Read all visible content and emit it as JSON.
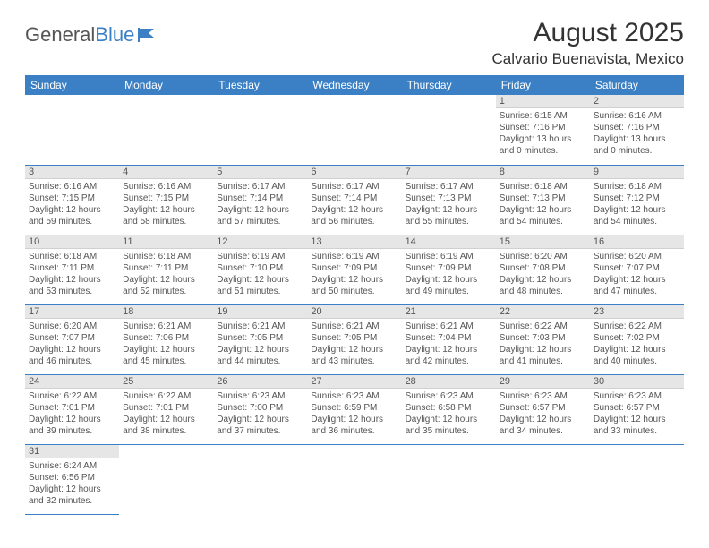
{
  "logo": {
    "text1": "General",
    "text2": "Blue"
  },
  "header": {
    "month_title": "August 2025",
    "location": "Calvario Buenavista, Mexico"
  },
  "colors": {
    "header_bg": "#3b7fc4",
    "row_border": "#3b7fc4",
    "daynum_bg": "#e6e6e6",
    "text": "#555555"
  },
  "calendar": {
    "day_headers": [
      "Sunday",
      "Monday",
      "Tuesday",
      "Wednesday",
      "Thursday",
      "Friday",
      "Saturday"
    ],
    "weeks": [
      [
        null,
        null,
        null,
        null,
        null,
        {
          "n": "1",
          "sr": "Sunrise: 6:15 AM",
          "ss": "Sunset: 7:16 PM",
          "dl": "Daylight: 13 hours and 0 minutes."
        },
        {
          "n": "2",
          "sr": "Sunrise: 6:16 AM",
          "ss": "Sunset: 7:16 PM",
          "dl": "Daylight: 13 hours and 0 minutes."
        }
      ],
      [
        {
          "n": "3",
          "sr": "Sunrise: 6:16 AM",
          "ss": "Sunset: 7:15 PM",
          "dl": "Daylight: 12 hours and 59 minutes."
        },
        {
          "n": "4",
          "sr": "Sunrise: 6:16 AM",
          "ss": "Sunset: 7:15 PM",
          "dl": "Daylight: 12 hours and 58 minutes."
        },
        {
          "n": "5",
          "sr": "Sunrise: 6:17 AM",
          "ss": "Sunset: 7:14 PM",
          "dl": "Daylight: 12 hours and 57 minutes."
        },
        {
          "n": "6",
          "sr": "Sunrise: 6:17 AM",
          "ss": "Sunset: 7:14 PM",
          "dl": "Daylight: 12 hours and 56 minutes."
        },
        {
          "n": "7",
          "sr": "Sunrise: 6:17 AM",
          "ss": "Sunset: 7:13 PM",
          "dl": "Daylight: 12 hours and 55 minutes."
        },
        {
          "n": "8",
          "sr": "Sunrise: 6:18 AM",
          "ss": "Sunset: 7:13 PM",
          "dl": "Daylight: 12 hours and 54 minutes."
        },
        {
          "n": "9",
          "sr": "Sunrise: 6:18 AM",
          "ss": "Sunset: 7:12 PM",
          "dl": "Daylight: 12 hours and 54 minutes."
        }
      ],
      [
        {
          "n": "10",
          "sr": "Sunrise: 6:18 AM",
          "ss": "Sunset: 7:11 PM",
          "dl": "Daylight: 12 hours and 53 minutes."
        },
        {
          "n": "11",
          "sr": "Sunrise: 6:18 AM",
          "ss": "Sunset: 7:11 PM",
          "dl": "Daylight: 12 hours and 52 minutes."
        },
        {
          "n": "12",
          "sr": "Sunrise: 6:19 AM",
          "ss": "Sunset: 7:10 PM",
          "dl": "Daylight: 12 hours and 51 minutes."
        },
        {
          "n": "13",
          "sr": "Sunrise: 6:19 AM",
          "ss": "Sunset: 7:09 PM",
          "dl": "Daylight: 12 hours and 50 minutes."
        },
        {
          "n": "14",
          "sr": "Sunrise: 6:19 AM",
          "ss": "Sunset: 7:09 PM",
          "dl": "Daylight: 12 hours and 49 minutes."
        },
        {
          "n": "15",
          "sr": "Sunrise: 6:20 AM",
          "ss": "Sunset: 7:08 PM",
          "dl": "Daylight: 12 hours and 48 minutes."
        },
        {
          "n": "16",
          "sr": "Sunrise: 6:20 AM",
          "ss": "Sunset: 7:07 PM",
          "dl": "Daylight: 12 hours and 47 minutes."
        }
      ],
      [
        {
          "n": "17",
          "sr": "Sunrise: 6:20 AM",
          "ss": "Sunset: 7:07 PM",
          "dl": "Daylight: 12 hours and 46 minutes."
        },
        {
          "n": "18",
          "sr": "Sunrise: 6:21 AM",
          "ss": "Sunset: 7:06 PM",
          "dl": "Daylight: 12 hours and 45 minutes."
        },
        {
          "n": "19",
          "sr": "Sunrise: 6:21 AM",
          "ss": "Sunset: 7:05 PM",
          "dl": "Daylight: 12 hours and 44 minutes."
        },
        {
          "n": "20",
          "sr": "Sunrise: 6:21 AM",
          "ss": "Sunset: 7:05 PM",
          "dl": "Daylight: 12 hours and 43 minutes."
        },
        {
          "n": "21",
          "sr": "Sunrise: 6:21 AM",
          "ss": "Sunset: 7:04 PM",
          "dl": "Daylight: 12 hours and 42 minutes."
        },
        {
          "n": "22",
          "sr": "Sunrise: 6:22 AM",
          "ss": "Sunset: 7:03 PM",
          "dl": "Daylight: 12 hours and 41 minutes."
        },
        {
          "n": "23",
          "sr": "Sunrise: 6:22 AM",
          "ss": "Sunset: 7:02 PM",
          "dl": "Daylight: 12 hours and 40 minutes."
        }
      ],
      [
        {
          "n": "24",
          "sr": "Sunrise: 6:22 AM",
          "ss": "Sunset: 7:01 PM",
          "dl": "Daylight: 12 hours and 39 minutes."
        },
        {
          "n": "25",
          "sr": "Sunrise: 6:22 AM",
          "ss": "Sunset: 7:01 PM",
          "dl": "Daylight: 12 hours and 38 minutes."
        },
        {
          "n": "26",
          "sr": "Sunrise: 6:23 AM",
          "ss": "Sunset: 7:00 PM",
          "dl": "Daylight: 12 hours and 37 minutes."
        },
        {
          "n": "27",
          "sr": "Sunrise: 6:23 AM",
          "ss": "Sunset: 6:59 PM",
          "dl": "Daylight: 12 hours and 36 minutes."
        },
        {
          "n": "28",
          "sr": "Sunrise: 6:23 AM",
          "ss": "Sunset: 6:58 PM",
          "dl": "Daylight: 12 hours and 35 minutes."
        },
        {
          "n": "29",
          "sr": "Sunrise: 6:23 AM",
          "ss": "Sunset: 6:57 PM",
          "dl": "Daylight: 12 hours and 34 minutes."
        },
        {
          "n": "30",
          "sr": "Sunrise: 6:23 AM",
          "ss": "Sunset: 6:57 PM",
          "dl": "Daylight: 12 hours and 33 minutes."
        }
      ],
      [
        {
          "n": "31",
          "sr": "Sunrise: 6:24 AM",
          "ss": "Sunset: 6:56 PM",
          "dl": "Daylight: 12 hours and 32 minutes."
        },
        null,
        null,
        null,
        null,
        null,
        null
      ]
    ]
  }
}
